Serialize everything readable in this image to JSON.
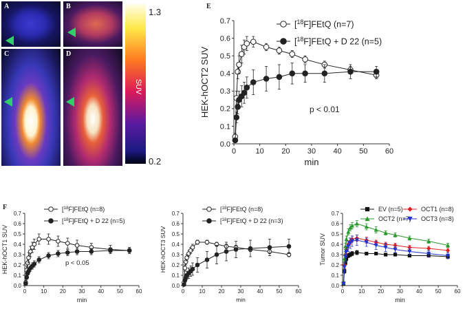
{
  "panel_labels": {
    "a": "A",
    "b": "B",
    "c": "C",
    "d": "D",
    "e": "E",
    "f": "F"
  },
  "colorbar": {
    "max_label": "1.3",
    "min_label": "0.2",
    "title": "SUV"
  },
  "chart_data": [
    {
      "id": "E",
      "type": "line",
      "ylabel": "HEK-hOCT2 SUV",
      "xlabel": "min",
      "xlim": [
        0,
        60
      ],
      "ylim": [
        0,
        0.7
      ],
      "xticks": [
        "0",
        "10",
        "20",
        "30",
        "40",
        "50",
        "60"
      ],
      "yticks": [
        "0.0",
        "0.1",
        "0.2",
        "0.3",
        "0.4",
        "0.5",
        "0.6",
        "0.7"
      ],
      "annotation": "p < 0.01",
      "series": [
        {
          "name": "[18F]FEtQ (n=7)",
          "sup": "18",
          "pre": "[",
          "post": "F]FEtQ (n=7)",
          "marker": "open-circle",
          "color": "#222222",
          "x": [
            0.5,
            1,
            1.5,
            2,
            3,
            4,
            5,
            7.5,
            12.5,
            17.5,
            22.5,
            27.5,
            35,
            45,
            55
          ],
          "y": [
            0.04,
            0.26,
            0.41,
            0.45,
            0.51,
            0.55,
            0.57,
            0.58,
            0.55,
            0.53,
            0.51,
            0.48,
            0.45,
            0.42,
            0.39
          ],
          "err": [
            0.02,
            0.04,
            0.04,
            0.05,
            0.05,
            0.04,
            0.04,
            0.03,
            0.02,
            0.02,
            0.02,
            0.02,
            0.02,
            0.02,
            0.02
          ]
        },
        {
          "name": "[18F]FEtQ + D 22 (n=5)",
          "sup": "18",
          "pre": "[",
          "post": "F]FEtQ + D 22 (n=5)",
          "marker": "filled-circle",
          "color": "#222222",
          "x": [
            0.5,
            1,
            1.5,
            2,
            3,
            4,
            5,
            7.5,
            12.5,
            17.5,
            22.5,
            27.5,
            35,
            45,
            55
          ],
          "y": [
            0.02,
            0.15,
            0.21,
            0.25,
            0.27,
            0.29,
            0.32,
            0.35,
            0.37,
            0.38,
            0.4,
            0.4,
            0.4,
            0.41,
            0.41
          ],
          "err": [
            0.01,
            0.03,
            0.04,
            0.05,
            0.06,
            0.06,
            0.06,
            0.07,
            0.07,
            0.07,
            0.06,
            0.05,
            0.05,
            0.04,
            0.03
          ]
        }
      ]
    },
    {
      "id": "F1",
      "type": "line",
      "ylabel": "HEK-hOCT1 SUV",
      "xlabel": "min",
      "xlim": [
        0,
        60
      ],
      "ylim": [
        0,
        0.7
      ],
      "xticks": [
        "0",
        "10",
        "20",
        "30",
        "40",
        "50",
        "60"
      ],
      "yticks": [
        "0.0",
        "0.1",
        "0.2",
        "0.3",
        "0.4",
        "0.5",
        "0.6",
        "0.7"
      ],
      "annotation": "p < 0.05",
      "series": [
        {
          "name": "[18F]FEtQ (n=8)",
          "sup": "18",
          "pre": "[",
          "post": "F]FEtQ (n=8)",
          "marker": "open-circle",
          "color": "#222222",
          "x": [
            0.5,
            1,
            1.5,
            2,
            3,
            4,
            5,
            7.5,
            12.5,
            17.5,
            22.5,
            27.5,
            35,
            45,
            55
          ],
          "y": [
            0.03,
            0.15,
            0.22,
            0.27,
            0.33,
            0.37,
            0.4,
            0.45,
            0.45,
            0.43,
            0.41,
            0.39,
            0.37,
            0.35,
            0.34
          ],
          "err": [
            0.02,
            0.04,
            0.05,
            0.05,
            0.05,
            0.05,
            0.05,
            0.05,
            0.05,
            0.05,
            0.05,
            0.05,
            0.04,
            0.04,
            0.03
          ]
        },
        {
          "name": "[18F]FEtQ + D 22 (n=5)",
          "sup": "18",
          "pre": "[",
          "post": "F]FEtQ + D 22 (n=5)",
          "marker": "filled-circle",
          "color": "#222222",
          "x": [
            0.5,
            1,
            1.5,
            2,
            3,
            4,
            5,
            7.5,
            12.5,
            17.5,
            22.5,
            27.5,
            35,
            45,
            55
          ],
          "y": [
            0.02,
            0.08,
            0.12,
            0.14,
            0.17,
            0.19,
            0.21,
            0.25,
            0.29,
            0.31,
            0.32,
            0.33,
            0.33,
            0.34,
            0.34
          ],
          "err": [
            0.01,
            0.02,
            0.02,
            0.03,
            0.03,
            0.03,
            0.03,
            0.03,
            0.03,
            0.03,
            0.03,
            0.03,
            0.03,
            0.02,
            0.02
          ]
        }
      ]
    },
    {
      "id": "F2",
      "type": "line",
      "ylabel": "HEK-hOCT3 SUV",
      "xlabel": "min",
      "xlim": [
        0,
        60
      ],
      "ylim": [
        0,
        0.7
      ],
      "xticks": [
        "0",
        "10",
        "20",
        "30",
        "40",
        "50",
        "60"
      ],
      "yticks": [
        "0.0",
        "0.1",
        "0.2",
        "0.3",
        "0.4",
        "0.5",
        "0.6",
        "0.7"
      ],
      "annotation": "",
      "series": [
        {
          "name": "[18F]FEtQ (n=8)",
          "sup": "18",
          "pre": "[",
          "post": "F]FEtQ (n=8)",
          "marker": "open-circle",
          "color": "#222222",
          "x": [
            0.5,
            1,
            1.5,
            2,
            3,
            4,
            5,
            7.5,
            12.5,
            17.5,
            22.5,
            27.5,
            35,
            45,
            55
          ],
          "y": [
            0.03,
            0.17,
            0.23,
            0.27,
            0.31,
            0.34,
            0.37,
            0.42,
            0.42,
            0.4,
            0.38,
            0.37,
            0.35,
            0.33,
            0.3
          ],
          "err": [
            0.02,
            0.03,
            0.03,
            0.03,
            0.03,
            0.03,
            0.03,
            0.02,
            0.02,
            0.02,
            0.02,
            0.02,
            0.02,
            0.02,
            0.02
          ]
        },
        {
          "name": "[18F]FEtQ + D 22 (n=3)",
          "sup": "18",
          "pre": "[",
          "post": "F]FEtQ + D 22 (n=3)",
          "marker": "filled-circle",
          "color": "#222222",
          "x": [
            0.5,
            1,
            1.5,
            2,
            3,
            4,
            5,
            7.5,
            12.5,
            17.5,
            22.5,
            27.5,
            35,
            45,
            55
          ],
          "y": [
            0.01,
            0.05,
            0.08,
            0.1,
            0.12,
            0.14,
            0.16,
            0.2,
            0.25,
            0.3,
            0.33,
            0.35,
            0.36,
            0.37,
            0.38
          ],
          "err": [
            0.01,
            0.02,
            0.03,
            0.04,
            0.05,
            0.05,
            0.06,
            0.07,
            0.08,
            0.09,
            0.09,
            0.08,
            0.08,
            0.08,
            0.07
          ]
        }
      ]
    },
    {
      "id": "F3",
      "type": "line",
      "ylabel": "Tumor SUV",
      "xlabel": "min",
      "xlim": [
        0,
        60
      ],
      "ylim": [
        0,
        0.7
      ],
      "xticks": [
        "0",
        "10",
        "20",
        "30",
        "40",
        "50",
        "60"
      ],
      "yticks": [
        "0.0",
        "0.1",
        "0.2",
        "0.3",
        "0.4",
        "0.5",
        "0.6",
        "0.7"
      ],
      "annotation": "",
      "series": [
        {
          "name": "EV (n=5)",
          "marker": "square",
          "color": "#111111",
          "x": [
            0.5,
            1,
            1.5,
            2,
            3,
            4,
            5,
            7.5,
            12.5,
            17.5,
            22.5,
            27.5,
            35,
            45,
            55
          ],
          "y": [
            0.02,
            0.14,
            0.22,
            0.26,
            0.29,
            0.3,
            0.31,
            0.32,
            0.31,
            0.31,
            0.3,
            0.3,
            0.29,
            0.29,
            0.28
          ],
          "err": [
            0.01,
            0.02,
            0.02,
            0.02,
            0.02,
            0.02,
            0.02,
            0.02,
            0.01,
            0.01,
            0.01,
            0.01,
            0.01,
            0.01,
            0.01
          ]
        },
        {
          "name": "OCT1 (n=8)",
          "marker": "diamond",
          "color": "#e02020",
          "x": [
            0.5,
            1,
            1.5,
            2,
            3,
            4,
            5,
            7.5,
            12.5,
            17.5,
            22.5,
            27.5,
            35,
            45,
            55
          ],
          "y": [
            0.03,
            0.2,
            0.3,
            0.35,
            0.4,
            0.43,
            0.45,
            0.46,
            0.44,
            0.42,
            0.4,
            0.39,
            0.37,
            0.36,
            0.34
          ],
          "err": [
            0.01,
            0.03,
            0.03,
            0.03,
            0.03,
            0.03,
            0.03,
            0.03,
            0.03,
            0.02,
            0.02,
            0.02,
            0.02,
            0.02,
            0.02
          ]
        },
        {
          "name": "OCT2 (n=7)",
          "marker": "triangle",
          "color": "#2a9a2a",
          "x": [
            0.5,
            1,
            1.5,
            2,
            3,
            4,
            5,
            7.5,
            12.5,
            17.5,
            22.5,
            27.5,
            35,
            45,
            55
          ],
          "y": [
            0.03,
            0.26,
            0.38,
            0.45,
            0.52,
            0.56,
            0.58,
            0.6,
            0.57,
            0.54,
            0.51,
            0.49,
            0.46,
            0.43,
            0.39
          ],
          "err": [
            0.01,
            0.03,
            0.03,
            0.03,
            0.03,
            0.03,
            0.03,
            0.03,
            0.03,
            0.03,
            0.02,
            0.02,
            0.02,
            0.02,
            0.02
          ]
        },
        {
          "name": "OCT3 (n=8)",
          "marker": "inv-triangle",
          "color": "#2233cc",
          "x": [
            0.5,
            1,
            1.5,
            2,
            3,
            4,
            5,
            7.5,
            12.5,
            17.5,
            22.5,
            27.5,
            35,
            45,
            55
          ],
          "y": [
            0.02,
            0.18,
            0.28,
            0.33,
            0.38,
            0.41,
            0.43,
            0.44,
            0.42,
            0.39,
            0.37,
            0.35,
            0.33,
            0.31,
            0.29
          ],
          "err": [
            0.01,
            0.04,
            0.05,
            0.05,
            0.05,
            0.05,
            0.05,
            0.05,
            0.04,
            0.04,
            0.04,
            0.03,
            0.03,
            0.03,
            0.03
          ]
        }
      ]
    }
  ]
}
